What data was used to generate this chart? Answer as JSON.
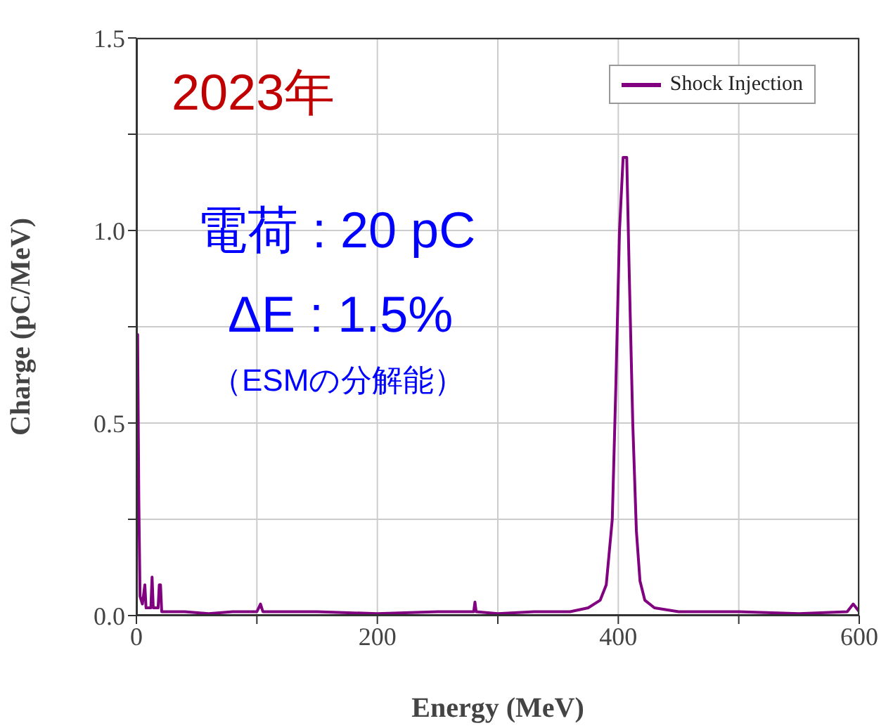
{
  "chart_data": {
    "type": "line",
    "xlabel": "Energy (MeV)",
    "ylabel": "Charge (pC/MeV)",
    "annotations": [
      "2023年",
      "電荷 : 20 pC",
      "ΔE : 1.5%",
      "（ESMの分解能）"
    ],
    "xlim": [
      0,
      600
    ],
    "xticks": [
      0,
      {
        "value": 100,
        "label": null
      },
      200,
      {
        "value": 300,
        "label": null
      },
      400,
      {
        "value": 500,
        "label": null
      },
      600
    ],
    "ylim": [
      0,
      1.5
    ],
    "yticks": [
      {
        "value": 0,
        "label": "0.0"
      },
      {
        "value": 0.25,
        "label": null
      },
      {
        "value": 0.5,
        "label": "0.5"
      },
      {
        "value": 0.75,
        "label": null
      },
      {
        "value": 1,
        "label": "1.0"
      },
      {
        "value": 1.25,
        "label": null
      },
      {
        "value": 1.5,
        "label": "1.5"
      }
    ],
    "grid": true,
    "legend": "top right",
    "marker": "none",
    "line_style": "solid",
    "series": [
      {
        "name": "Shock Injection",
        "color": "#800080",
        "x": [
          0,
          1,
          2,
          3,
          5,
          7,
          8,
          12,
          13,
          14,
          18,
          19,
          20,
          21,
          40,
          60,
          80,
          100,
          103,
          105,
          150,
          200,
          250,
          280,
          281,
          282,
          300,
          330,
          360,
          375,
          385,
          390,
          395,
          398,
          401,
          404,
          407,
          409,
          412,
          415,
          418,
          422,
          430,
          450,
          500,
          550,
          590,
          595,
          600
        ],
        "values": [
          0.73,
          0.73,
          0.3,
          0.05,
          0.03,
          0.08,
          0.02,
          0.02,
          0.1,
          0.02,
          0.02,
          0.08,
          0.08,
          0.01,
          0.01,
          0.005,
          0.01,
          0.01,
          0.03,
          0.01,
          0.01,
          0.005,
          0.01,
          0.01,
          0.035,
          0.01,
          0.005,
          0.01,
          0.01,
          0.02,
          0.04,
          0.08,
          0.25,
          0.6,
          1.0,
          1.19,
          1.19,
          0.9,
          0.5,
          0.22,
          0.09,
          0.04,
          0.02,
          0.01,
          0.01,
          0.005,
          0.01,
          0.03,
          0.01
        ]
      }
    ]
  }
}
